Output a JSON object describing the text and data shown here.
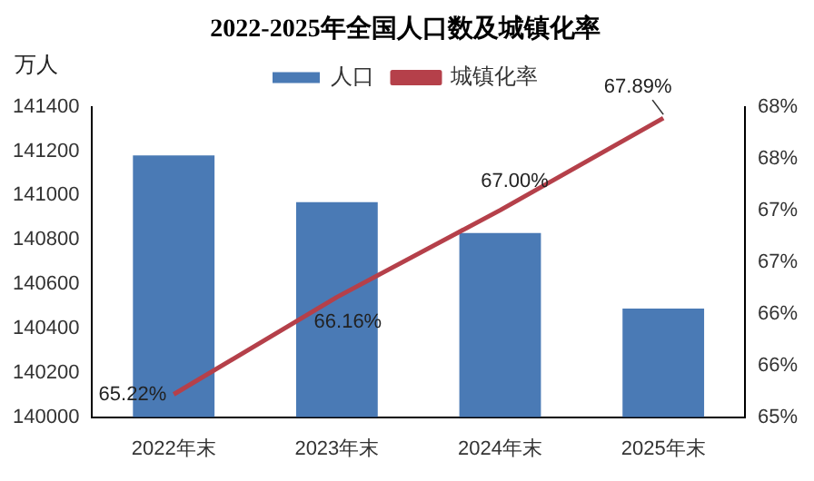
{
  "chart_data": {
    "type": "bar",
    "title": "2022-2025年全国人口数及城镇化率",
    "ylabel": "万人",
    "categories": [
      "2022年末",
      "2023年末",
      "2024年末",
      "2025年末"
    ],
    "series": [
      {
        "name": "人口",
        "color": "#4a7ab5",
        "values": [
          141180,
          140970,
          140830,
          140490
        ]
      },
      {
        "name": "城镇化率",
        "type": "line",
        "axis": "y2",
        "color": "#b5404a",
        "values": [
          65.22,
          66.16,
          67.0,
          67.89
        ],
        "value_labels": [
          "65.22%",
          "66.16%",
          "67.00%",
          "67.89%"
        ]
      }
    ],
    "ylim": [
      140000,
      141400
    ],
    "yticks": [
      140000,
      140200,
      140400,
      140600,
      140800,
      141000,
      141200,
      141400
    ],
    "y2lim": [
      65,
      68
    ],
    "y2ticks": [
      {
        "value": 65,
        "label": "65%"
      },
      {
        "value": 65.5,
        "label": "66%"
      },
      {
        "value": 66,
        "label": "66%"
      },
      {
        "value": 66.5,
        "label": "67%"
      },
      {
        "value": 67,
        "label": "67%"
      },
      {
        "value": 67.5,
        "label": "68%"
      },
      {
        "value": 68,
        "label": "68%"
      }
    ],
    "legend": "top",
    "grid": false,
    "marker": "none"
  }
}
